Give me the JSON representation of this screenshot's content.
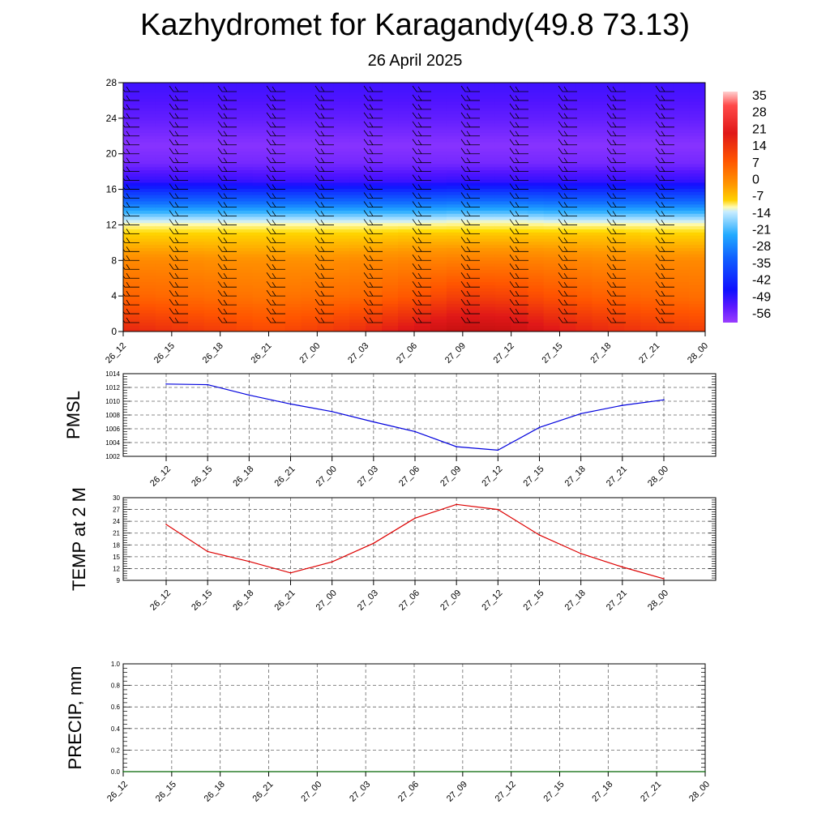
{
  "title": "Kazhydromet for Karagandy(49.8 73.13)",
  "subtitle": "26 April 2025",
  "colors": {
    "pmsl": "#0000dd",
    "temp": "#dd0000",
    "precip": "#006400"
  },
  "chart_data": [
    {
      "type": "heatmap",
      "name": "vertical-cross-section",
      "xlabel": "",
      "ylabel": "",
      "x": [
        "26_12",
        "26_15",
        "26_18",
        "26_21",
        "27_00",
        "27_03",
        "27_06",
        "27_09",
        "27_12",
        "27_15",
        "27_18",
        "27_21",
        "28_00"
      ],
      "yticks": [
        0,
        4,
        8,
        12,
        16,
        20,
        24,
        28
      ],
      "ylim": [
        0,
        28
      ],
      "colorbar": {
        "labels": [
          "35",
          "28",
          "21",
          "14",
          "7",
          "0",
          "-7",
          "-14",
          "-21",
          "-28",
          "-35",
          "-42",
          "-49",
          "-56"
        ]
      },
      "layers_temperature": [
        {
          "level": 0,
          "values": [
            18,
            16,
            14,
            12,
            14,
            17,
            22,
            26,
            25,
            20,
            17,
            15,
            14
          ]
        },
        {
          "level": 4,
          "values": [
            8,
            7,
            6,
            5,
            6,
            7,
            10,
            14,
            13,
            10,
            8,
            7,
            6
          ]
        },
        {
          "level": 8,
          "values": [
            2,
            2,
            1,
            1,
            1,
            2,
            3,
            4,
            4,
            3,
            2,
            2,
            2
          ]
        },
        {
          "level": 11,
          "values": [
            -6,
            -6,
            -6,
            -6,
            -6,
            -6,
            -5,
            -5,
            -5,
            -5,
            -5,
            -6,
            -6
          ]
        },
        {
          "level": 12.5,
          "values": [
            -14,
            -14,
            -14,
            -14,
            -14,
            -14,
            -14,
            -13,
            -13,
            -14,
            -14,
            -14,
            -14
          ]
        },
        {
          "level": 15,
          "values": [
            -32,
            -32,
            -32,
            -32,
            -32,
            -32,
            -32,
            -31,
            -31,
            -32,
            -32,
            -32,
            -32
          ]
        },
        {
          "level": 17,
          "values": [
            -49,
            -49,
            -49,
            -50,
            -50,
            -50,
            -50,
            -49,
            -49,
            -49,
            -49,
            -49,
            -49
          ]
        },
        {
          "level": 19,
          "values": [
            -56,
            -56,
            -56,
            -56,
            -56,
            -56,
            -56,
            -56,
            -56,
            -56,
            -56,
            -56,
            -56
          ]
        },
        {
          "level": 21,
          "values": [
            -58,
            -58,
            -58,
            -58,
            -58,
            -58,
            -58,
            -58,
            -58,
            -58,
            -58,
            -58,
            -58
          ]
        },
        {
          "level": 24,
          "values": [
            -54,
            -54,
            -54,
            -54,
            -54,
            -54,
            -54,
            -54,
            -54,
            -54,
            -54,
            -54,
            -54
          ]
        },
        {
          "level": 28,
          "values": [
            -50,
            -50,
            -50,
            -50,
            -50,
            -50,
            -50,
            -50,
            -50,
            -50,
            -50,
            -50,
            -50
          ]
        }
      ]
    },
    {
      "type": "line",
      "name": "pmsl",
      "ylabel": "PMSL",
      "x": [
        "26_12",
        "26_15",
        "26_18",
        "26_21",
        "27_00",
        "27_03",
        "27_06",
        "27_09",
        "27_12",
        "27_15",
        "27_18",
        "27_21",
        "28_00"
      ],
      "values": [
        1012.5,
        1012.4,
        1010.9,
        1009.6,
        1008.5,
        1007.0,
        1005.6,
        1003.4,
        1002.9,
        1006.2,
        1008.2,
        1009.4,
        1010.2
      ],
      "ylim": [
        1002,
        1014
      ],
      "yticks": [
        1002,
        1004,
        1006,
        1008,
        1010,
        1012,
        1014
      ],
      "grid": true
    },
    {
      "type": "line",
      "name": "temp",
      "ylabel": "TEMP at 2 M",
      "x": [
        "26_12",
        "26_15",
        "26_18",
        "26_21",
        "27_00",
        "27_03",
        "27_06",
        "27_09",
        "27_12",
        "27_15",
        "27_18",
        "27_21",
        "28_00"
      ],
      "values": [
        23.2,
        16.3,
        13.8,
        10.9,
        13.7,
        18.4,
        24.8,
        28.3,
        27.0,
        20.5,
        15.8,
        12.4,
        9.4
      ],
      "ylim": [
        9,
        30
      ],
      "yticks": [
        9,
        12,
        15,
        18,
        21,
        24,
        27,
        30
      ],
      "grid": true
    },
    {
      "type": "line",
      "name": "precip",
      "ylabel": "PRECIP, mm",
      "x": [
        "26_12",
        "26_15",
        "26_18",
        "26_21",
        "27_00",
        "27_03",
        "27_06",
        "27_09",
        "27_12",
        "27_15",
        "27_18",
        "27_21",
        "28_00"
      ],
      "values": [
        0,
        0,
        0,
        0,
        0,
        0,
        0,
        0,
        0,
        0,
        0,
        0,
        0
      ],
      "ylim": [
        0,
        1
      ],
      "yticks": [
        "0.0",
        "0.2",
        "0.4",
        "0.6",
        "0.8",
        "1.0"
      ],
      "grid": true
    }
  ]
}
